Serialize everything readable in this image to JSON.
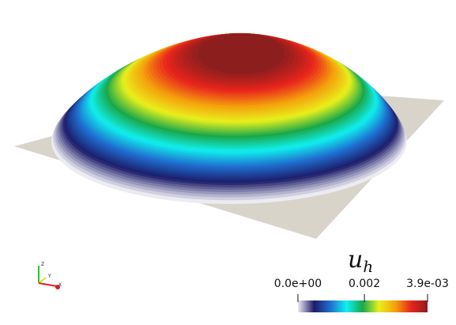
{
  "colorbar": {
    "title": {
      "base": "u",
      "sub": "h"
    },
    "range": [
      0,
      0.0039
    ],
    "ticks": [
      {
        "value": 0,
        "label": "0.0e+00"
      },
      0.002,
      {
        "value": 0.0039,
        "label": "3.9e-03"
      }
    ],
    "colormap": [
      "#ecebf2",
      "#1c1c6a",
      "#1f6fd0",
      "#10f0ee",
      "#1aa84a",
      "#e8f01c",
      "#f5a10c",
      "#e8241c",
      "#8c1e1e"
    ]
  },
  "orientation_axes": {
    "labels": [
      "Z",
      "Y",
      "X"
    ]
  },
  "plane_color": "#d8d4ca"
}
